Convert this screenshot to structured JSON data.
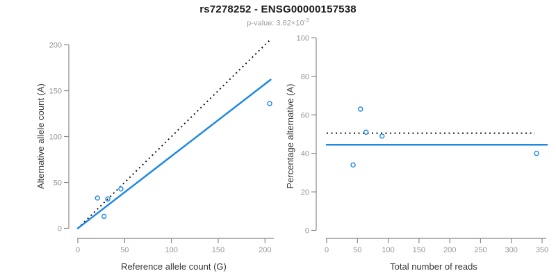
{
  "header": {
    "title": "rs7278252 - ENSG00000157538",
    "p_label": "p-value: 3.62×10",
    "p_exponent": "-3"
  },
  "colors": {
    "accent_blue": "#1E88E5",
    "dotted_black": "#141414",
    "axis_gray": "#878787",
    "tick_label_gray": "#969696",
    "axis_title_dark": "#383838"
  },
  "chart_data": [
    {
      "type": "scatter",
      "name": "allele-count-scatter",
      "xlabel": "Reference allele count (G)",
      "ylabel": "Alternative allele count (A)",
      "xlim": [
        0,
        205
      ],
      "ylim": [
        0,
        205
      ],
      "xticks": [
        0,
        50,
        100,
        150,
        200
      ],
      "yticks": [
        0,
        50,
        100,
        150,
        200
      ],
      "points": [
        [
          21,
          33
        ],
        [
          32,
          32
        ],
        [
          28,
          13
        ],
        [
          46,
          43
        ],
        [
          205,
          136
        ]
      ],
      "lines": [
        {
          "name": "identity-line",
          "style": "dotted",
          "color": "black",
          "from": [
            0,
            0
          ],
          "to": [
            205,
            205
          ]
        },
        {
          "name": "regression-line",
          "style": "solid",
          "color": "blue",
          "from": [
            0,
            0
          ],
          "to": [
            206,
            162
          ]
        }
      ],
      "grid": false,
      "legend": "none"
    },
    {
      "type": "scatter",
      "name": "percentage-scatter",
      "xlabel": "Total number of reads",
      "ylabel": "Percentage alternative (A)",
      "xlim": [
        0,
        355
      ],
      "ylim": [
        0,
        100
      ],
      "xticks": [
        0,
        50,
        100,
        150,
        200,
        250,
        300,
        350
      ],
      "yticks": [
        0,
        20,
        40,
        60,
        80,
        100
      ],
      "points": [
        [
          55,
          63
        ],
        [
          64,
          51
        ],
        [
          90,
          49
        ],
        [
          43,
          34
        ],
        [
          341,
          40
        ]
      ],
      "lines": [
        {
          "name": "expected-50pct-line",
          "style": "dotted",
          "color": "black",
          "from": [
            0,
            50.5
          ],
          "to": [
            338,
            50.5
          ]
        },
        {
          "name": "mean-percentage-line",
          "style": "solid",
          "color": "blue",
          "from": [
            0,
            44.5
          ],
          "to": [
            358,
            44.5
          ]
        }
      ],
      "grid": false,
      "legend": "none"
    }
  ]
}
